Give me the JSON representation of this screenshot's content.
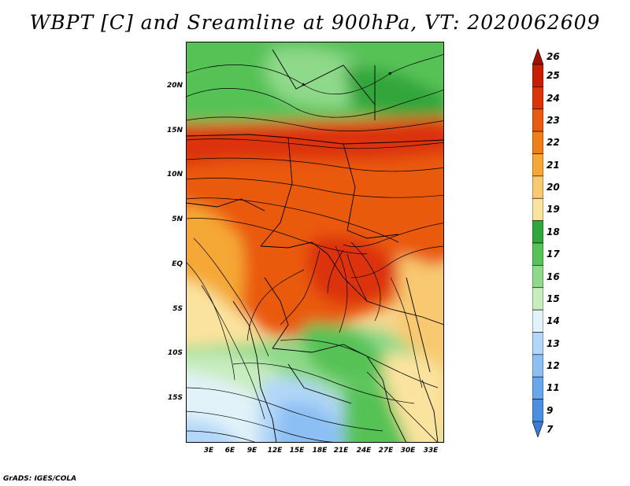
{
  "title": "WBPT [C] and Sreamline at 900hPa, VT: 2020062609",
  "footer": "GrADS: IGES/COLA",
  "map": {
    "lat_labels": [
      "20N",
      "15N",
      "10N",
      "5N",
      "EQ",
      "5S",
      "10S",
      "15S"
    ],
    "lon_labels": [
      "3E",
      "6E",
      "9E",
      "12E",
      "15E",
      "18E",
      "21E",
      "24E",
      "27E",
      "30E",
      "33E"
    ]
  },
  "colorbar": {
    "levels": [
      "7",
      "9",
      "11",
      "12",
      "13",
      "14",
      "15",
      "16",
      "17",
      "18",
      "19",
      "20",
      "21",
      "22",
      "23",
      "24",
      "25",
      "26"
    ],
    "colors": [
      "#3c7ad8",
      "#4c8fe2",
      "#69a7ec",
      "#8cbff3",
      "#b2d7f8",
      "#e2f2f9",
      "#c7ecbd",
      "#8fd98a",
      "#56c257",
      "#32a63a",
      "#fae39e",
      "#f8c96f",
      "#f5a834",
      "#f07f1a",
      "#ea5a10",
      "#dc3309",
      "#c81d03",
      "#a30f00"
    ]
  }
}
